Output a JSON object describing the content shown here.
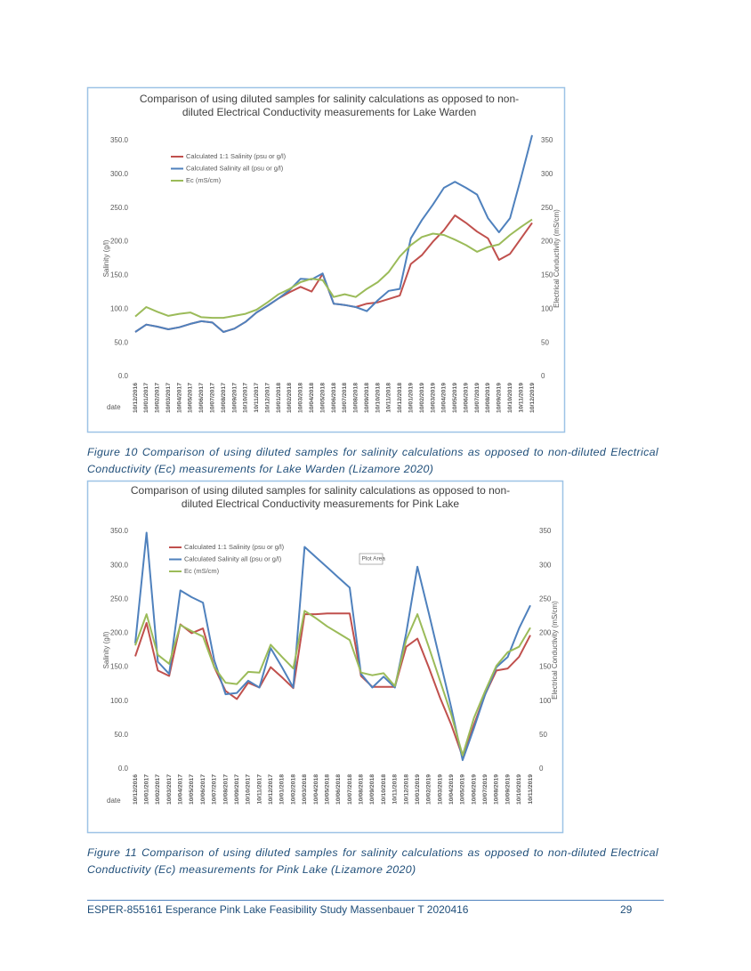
{
  "chart_data": [
    {
      "type": "line",
      "title": "Comparison of using diluted samples for salinity calculations as opposed to non-diluted Electrical Conductivity measurements for Lake Warden",
      "caption": "Figure 10 Comparison of using diluted samples for salinity calculations as opposed to non-diluted Electrical Conductivity (Ec) measurements for Lake Warden (Lizamore 2020)",
      "xlabel": "date",
      "ylabel": "Salinity (g/l)",
      "y2label": "Electrical Conductivity (mS/cm)",
      "legend": "upper left",
      "categories": [
        "10/12/2016",
        "10/01/2017",
        "10/02/2017",
        "10/03/2017",
        "10/04/2017",
        "10/05/2017",
        "10/06/2017",
        "10/07/2017",
        "10/08/2017",
        "10/09/2017",
        "10/10/2017",
        "10/11/2017",
        "10/12/2017",
        "10/01/2018",
        "10/02/2018",
        "10/03/2018",
        "10/04/2018",
        "10/05/2018",
        "10/06/2018",
        "10/07/2018",
        "10/08/2018",
        "10/09/2018",
        "10/10/2018",
        "10/11/2018",
        "10/12/2018",
        "10/01/2019",
        "10/02/2019",
        "10/03/2019",
        "10/04/2019",
        "10/05/2019",
        "10/06/2019",
        "10/07/2019",
        "10/08/2019",
        "10/09/2019",
        "10/10/2019",
        "10/11/2019",
        "10/12/2019"
      ],
      "series": [
        {
          "name": "Calculated 1:1 Salinity (psu or g/l)",
          "color": "#c0504d",
          "values": [
            66,
            77,
            74,
            70,
            73,
            78,
            82,
            80,
            66,
            71,
            81,
            95,
            105,
            116,
            125,
            133,
            126,
            152,
            108,
            106,
            103,
            108,
            110,
            115,
            120,
            167,
            180,
            200,
            217,
            239,
            228,
            215,
            205,
            173,
            182,
            205,
            228
          ]
        },
        {
          "name": "Calculated Salinity all (psu or g/l)",
          "color": "#4f81bd",
          "values": [
            66,
            77,
            74,
            70,
            73,
            78,
            82,
            80,
            66,
            71,
            81,
            95,
            105,
            116,
            128,
            145,
            144,
            153,
            108,
            106,
            103,
            97,
            113,
            127,
            130,
            205,
            232,
            255,
            280,
            289,
            280,
            270,
            235,
            214,
            235,
            295,
            358
          ]
        },
        {
          "name": "Ec (mS/cm)",
          "color": "#9bbb59",
          "axis": "y2",
          "values": [
            89,
            103,
            96,
            90,
            93,
            95,
            88,
            87,
            87,
            90,
            93,
            99,
            110,
            122,
            130,
            140,
            145,
            143,
            118,
            122,
            118,
            130,
            140,
            155,
            178,
            195,
            207,
            212,
            210,
            203,
            195,
            185,
            192,
            196,
            210,
            222,
            233
          ]
        }
      ],
      "ylim": [
        0,
        350
      ],
      "yticks": [
        {
          "value": 0,
          "label": "0.0"
        },
        {
          "value": 50,
          "label": "50.0"
        },
        {
          "value": 100,
          "label": "100.0"
        },
        {
          "value": 150,
          "label": "150.0"
        },
        {
          "value": 200,
          "label": "200.0"
        },
        {
          "value": 250,
          "label": "250.0"
        },
        {
          "value": 300,
          "label": "300.0"
        },
        {
          "value": 350,
          "label": "350.0"
        }
      ],
      "y2lim": [
        0,
        350
      ],
      "y2ticks": [
        0,
        50,
        100,
        150,
        200,
        250,
        300,
        350
      ]
    },
    {
      "type": "line",
      "title": "Comparison of using diluted samples for salinity calculations as opposed to non-diluted Electrical Conductivity measurements for Pink Lake",
      "caption": "Figure 11 Comparison of using diluted samples for salinity calculations as opposed to non-diluted Electrical Conductivity (Ec) measurements for Pink Lake (Lizamore 2020)",
      "xlabel": "date",
      "ylabel": "Salinity (g/l)",
      "y2label": "Electrical Conductivity (mS/cm)",
      "legend": "upper left",
      "annotation": "Plot Area",
      "categories": [
        "10/12/2016",
        "10/01/2017",
        "10/02/2017",
        "10/03/2017",
        "10/04/2017",
        "10/05/2017",
        "10/06/2017",
        "10/07/2017",
        "10/08/2017",
        "10/09/2017",
        "10/10/2017",
        "10/11/2017",
        "10/12/2017",
        "10/01/2018",
        "10/02/2018",
        "10/03/2018",
        "10/04/2018",
        "10/05/2018",
        "10/06/2018",
        "10/07/2018",
        "10/08/2018",
        "10/09/2018",
        "10/10/2018",
        "10/11/2018",
        "10/12/2018",
        "10/01/2019",
        "10/02/2019",
        "10/03/2019",
        "10/04/2019",
        "10/05/2019",
        "10/06/2019",
        "10/07/2019",
        "10/08/2019",
        "10/09/2019",
        "10/10/2019",
        "10/11/2019"
      ],
      "series": [
        {
          "name": "Calculated 1:1 Salinity (psu or g/l)",
          "color": "#c0504d",
          "values": [
            166,
            215,
            145,
            137,
            213,
            200,
            207,
            150,
            115,
            103,
            127,
            120,
            150,
            135,
            119,
            228,
            228,
            229,
            229,
            229,
            137,
            121,
            121,
            121,
            180,
            192,
            150,
            105,
            65,
            18,
            65,
            110,
            145,
            148,
            165,
            197
          ]
        },
        {
          "name": "Calculated Salinity all (psu or g/l)",
          "color": "#4f81bd",
          "values": [
            185,
            348,
            158,
            140,
            263,
            253,
            245,
            160,
            110,
            112,
            130,
            120,
            178,
            150,
            120,
            327,
            312,
            297,
            282,
            267,
            140,
            120,
            136,
            120,
            200,
            298,
            230,
            160,
            90,
            13,
            60,
            110,
            150,
            165,
            207,
            241
          ]
        },
        {
          "name": "Ec (mS/cm)",
          "color": "#9bbb59",
          "axis": "y2",
          "values": [
            182,
            228,
            168,
            155,
            212,
            203,
            195,
            150,
            127,
            125,
            143,
            142,
            183,
            165,
            148,
            233,
            222,
            210,
            200,
            190,
            142,
            138,
            141,
            122,
            190,
            228,
            180,
            130,
            80,
            20,
            75,
            115,
            152,
            172,
            180,
            208
          ]
        }
      ],
      "ylim": [
        0,
        350
      ],
      "yticks": [
        {
          "value": 0,
          "label": "0.0"
        },
        {
          "value": 50,
          "label": "50.0"
        },
        {
          "value": 100,
          "label": "100.0"
        },
        {
          "value": 150,
          "label": "150.0"
        },
        {
          "value": 200,
          "label": "200.0"
        },
        {
          "value": 250,
          "label": "250.0"
        },
        {
          "value": 300,
          "label": "300.0"
        },
        {
          "value": 350,
          "label": "350.0"
        }
      ],
      "y2lim": [
        0,
        350
      ],
      "y2ticks": [
        0,
        50,
        100,
        150,
        200,
        250,
        300,
        350
      ]
    }
  ],
  "footer": {
    "text": "ESPER-855161 Esperance Pink Lake Feasibility Study Massenbauer T 2020416",
    "page": "29"
  }
}
